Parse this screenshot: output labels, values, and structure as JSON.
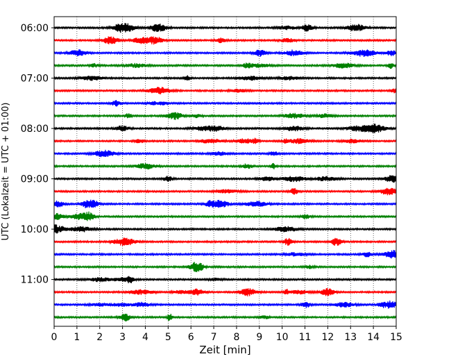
{
  "chart_data": {
    "type": "line",
    "title": "",
    "xlabel": "Zeit  [min]",
    "ylabel": "UTC (Lokalzeit = UTC + 01:00)",
    "xlim": [
      0,
      15
    ],
    "xticks": [
      0,
      1,
      2,
      3,
      4,
      5,
      6,
      7,
      8,
      9,
      10,
      11,
      12,
      13,
      14,
      15
    ],
    "ytick_labels": [
      "06:00",
      "07:00",
      "08:00",
      "09:00",
      "10:00",
      "11:00"
    ],
    "ytick_traces": [
      0,
      4,
      8,
      12,
      16,
      20
    ],
    "grid_x": true,
    "trace_interval_minutes": 15,
    "trace_colors": [
      "#000000",
      "#ff0000",
      "#0000ff",
      "#008000"
    ],
    "traces": [
      {
        "start": "06:00",
        "color": "#000000"
      },
      {
        "start": "06:15",
        "color": "#ff0000"
      },
      {
        "start": "06:30",
        "color": "#0000ff"
      },
      {
        "start": "06:45",
        "color": "#008000"
      },
      {
        "start": "07:00",
        "color": "#000000"
      },
      {
        "start": "07:15",
        "color": "#ff0000"
      },
      {
        "start": "07:30",
        "color": "#0000ff"
      },
      {
        "start": "07:45",
        "color": "#008000"
      },
      {
        "start": "08:00",
        "color": "#000000"
      },
      {
        "start": "08:15",
        "color": "#ff0000"
      },
      {
        "start": "08:30",
        "color": "#0000ff"
      },
      {
        "start": "08:45",
        "color": "#008000"
      },
      {
        "start": "09:00",
        "color": "#000000"
      },
      {
        "start": "09:15",
        "color": "#ff0000"
      },
      {
        "start": "09:30",
        "color": "#0000ff"
      },
      {
        "start": "09:45",
        "color": "#008000"
      },
      {
        "start": "10:00",
        "color": "#000000"
      },
      {
        "start": "10:15",
        "color": "#ff0000"
      },
      {
        "start": "10:30",
        "color": "#0000ff"
      },
      {
        "start": "10:45",
        "color": "#008000"
      },
      {
        "start": "11:00",
        "color": "#000000"
      },
      {
        "start": "11:15",
        "color": "#ff0000"
      },
      {
        "start": "11:30",
        "color": "#0000ff"
      },
      {
        "start": "11:45",
        "color": "#008000"
      }
    ]
  }
}
